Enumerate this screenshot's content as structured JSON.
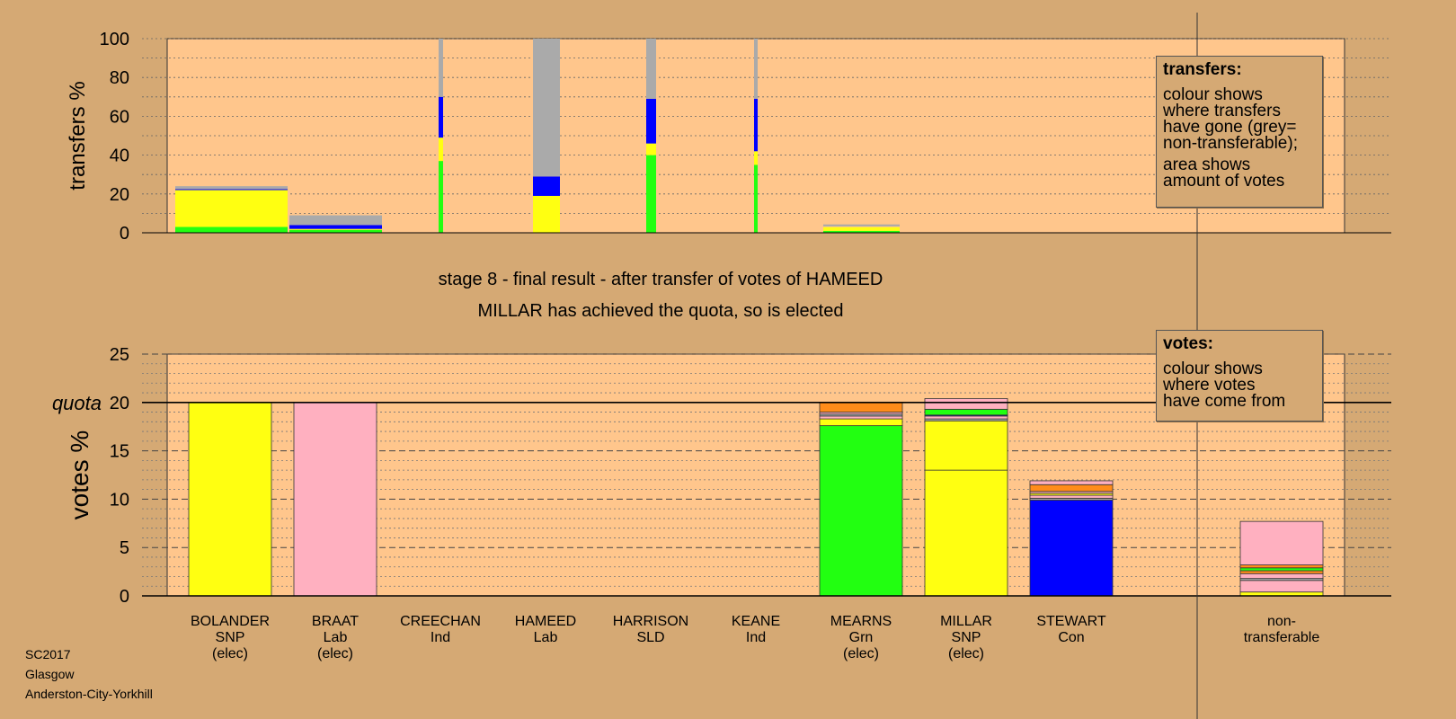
{
  "chart_data": [
    {
      "type": "bar",
      "stacked": true,
      "ylabel": "transfers %",
      "ylim": [
        0,
        100
      ],
      "yticks": [
        0,
        20,
        40,
        60,
        80,
        100
      ],
      "grid": "dotted every 10",
      "categories": [
        "BOLANDER SNP (elec)",
        "BRAAT Lab (elec)",
        "CREECHAN Ind",
        "HAMEED Lab",
        "HARRISON SLD",
        "KEANE Ind",
        "MEARNS Grn (elec)"
      ],
      "series": [
        {
          "color": "#22ff11",
          "values": [
            3,
            1.5,
            37,
            0,
            40,
            35,
            1
          ]
        },
        {
          "color": "#ffff11",
          "values": [
            19,
            0.5,
            12,
            19,
            6,
            7,
            2
          ]
        },
        {
          "color": "#ffb0c0",
          "values": [
            0,
            0,
            0,
            0,
            0,
            0,
            0.3
          ]
        },
        {
          "color": "#0000ff",
          "values": [
            0.5,
            2,
            21,
            10,
            23,
            27,
            0
          ]
        },
        {
          "color": "#aaaaaa",
          "values": [
            1.5,
            5,
            30,
            71,
            31,
            31,
            1
          ]
        }
      ],
      "legend": {
        "title": "transfers:",
        "lines_a": [
          "colour shows",
          "where transfers",
          "have gone (grey=",
          "non-transferable);"
        ],
        "lines_b": [
          "area shows",
          "amount of votes"
        ]
      }
    },
    {
      "type": "bar",
      "stacked": true,
      "ylabel": "votes %",
      "ylim": [
        0,
        25
      ],
      "yticks": [
        0,
        5,
        10,
        15,
        20,
        25
      ],
      "quota": 20,
      "quota_label": "quota",
      "categories": [
        "BOLANDER SNP (elec)",
        "BRAAT Lab (elec)",
        "CREECHAN Ind",
        "HAMEED Lab",
        "HARRISON SLD",
        "KEANE Ind",
        "MEARNS Grn (elec)",
        "MILLAR SNP (elec)",
        "STEWART Con",
        "non-transferable"
      ],
      "segments": [
        [
          {
            "color": "#ffff11",
            "value": 20
          }
        ],
        [
          {
            "color": "#ffb0c0",
            "value": 20
          }
        ],
        [],
        [],
        [],
        [],
        [
          {
            "color": "#22ff11",
            "value": 17.6
          },
          {
            "color": "#ffff11",
            "value": 0.7
          },
          {
            "color": "#ffb0c0",
            "value": 0.3
          },
          {
            "color": "#aaaaaa",
            "value": 0.2
          },
          {
            "color": "#ffb0c0",
            "value": 0.2
          },
          {
            "color": "#ff8c1a",
            "value": 1.0
          }
        ],
        [
          {
            "color": "#ffff11",
            "value": 13.0
          },
          {
            "color": "#ffff11",
            "value": 5.1
          },
          {
            "color": "#aaaaaa",
            "value": 0.2
          },
          {
            "color": "#ffb0c0",
            "value": 0.3
          },
          {
            "color": "#0000ff",
            "value": 0.1
          },
          {
            "color": "#22ff11",
            "value": 0.6
          },
          {
            "color": "#ffb0c0",
            "value": 1.1
          }
        ],
        [
          {
            "color": "#0000ff",
            "value": 9.9
          },
          {
            "color": "#aaaaaa",
            "value": 0.2
          },
          {
            "color": "#ffb0c0",
            "value": 0.3
          },
          {
            "color": "#ffff11",
            "value": 0.2
          },
          {
            "color": "#ffb0c0",
            "value": 0.2
          },
          {
            "color": "#ff8c1a",
            "value": 0.7
          },
          {
            "color": "#ffb0c0",
            "value": 0.4
          }
        ],
        [
          {
            "color": "#ffff11",
            "value": 0.4
          },
          {
            "color": "#ffb0c0",
            "value": 1.2
          },
          {
            "color": "#aaaaaa",
            "value": 0.2
          },
          {
            "color": "#ffb0c0",
            "value": 0.5
          },
          {
            "color": "#ff8c1a",
            "value": 0.3
          },
          {
            "color": "#22ff11",
            "value": 0.3
          },
          {
            "color": "#ff8c1a",
            "value": 0.3
          },
          {
            "color": "#ffb0c0",
            "value": 4.5
          }
        ]
      ],
      "legend": {
        "title": "votes:",
        "lines_a": [
          "colour shows",
          "where votes",
          "have come from"
        ]
      }
    }
  ],
  "captions": {
    "stage": "stage 8 - final result - after transfer of votes of HAMEED",
    "status": "MILLAR has achieved the quota, so is elected"
  },
  "candidates": [
    {
      "name": "BOLANDER",
      "party": "SNP",
      "note": "(elec)"
    },
    {
      "name": "BRAAT",
      "party": "Lab",
      "note": "(elec)"
    },
    {
      "name": "CREECHAN",
      "party": "Ind",
      "note": ""
    },
    {
      "name": "HAMEED",
      "party": "Lab",
      "note": ""
    },
    {
      "name": "HARRISON",
      "party": "SLD",
      "note": ""
    },
    {
      "name": "KEANE",
      "party": "Ind",
      "note": ""
    },
    {
      "name": "MEARNS",
      "party": "Grn",
      "note": "(elec)"
    },
    {
      "name": "MILLAR",
      "party": "SNP",
      "note": "(elec)"
    },
    {
      "name": "STEWART",
      "party": "Con",
      "note": ""
    },
    {
      "name": "non-",
      "party": "transferable",
      "note": ""
    }
  ],
  "footer": {
    "line1": "SC2017",
    "line2": "Glasgow",
    "line3": "Anderston-City-Yorkhill"
  },
  "colors": {
    "background": "#d5a974",
    "plot_background": "#ffc68c"
  }
}
